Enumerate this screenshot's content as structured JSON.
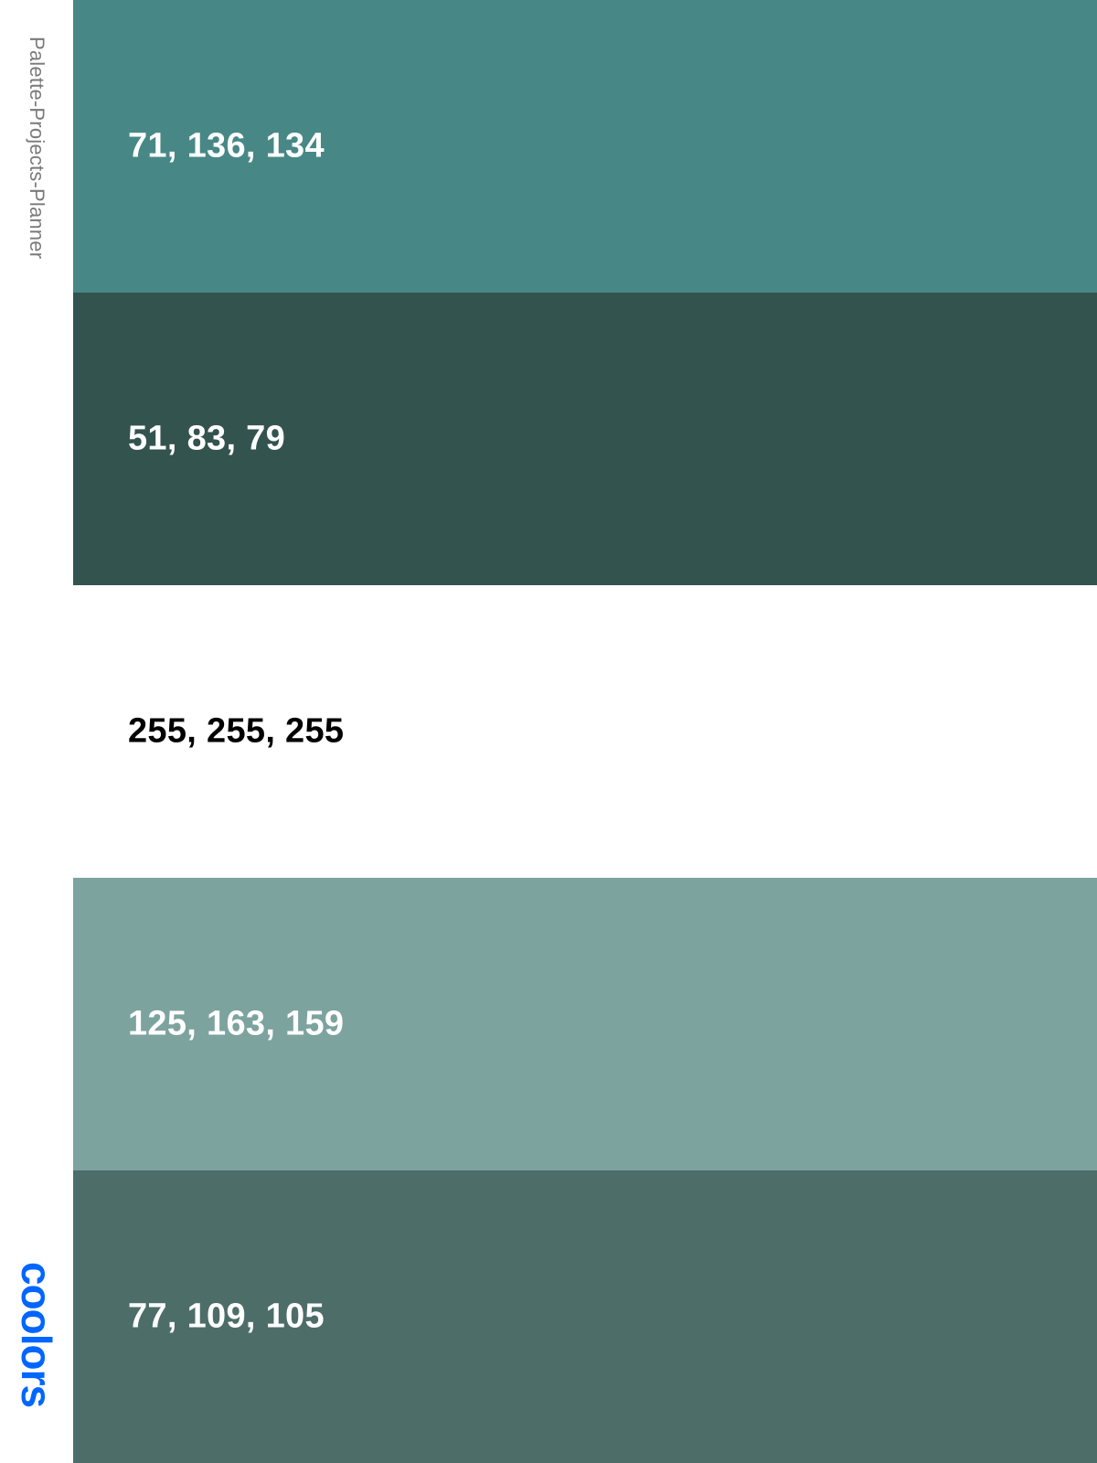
{
  "sidebar": {
    "title": "Palette-Projects-Planner",
    "logo_text": "coolors",
    "logo_color": "#0066ff"
  },
  "swatches": [
    {
      "label": "71, 136, 134",
      "color": "#478886",
      "text_color": "#ffffff"
    },
    {
      "label": "51, 83, 79",
      "color": "#33534f",
      "text_color": "#ffffff"
    },
    {
      "label": "255, 255, 255",
      "color": "#ffffff",
      "text_color": "#000000"
    },
    {
      "label": "125, 163, 159",
      "color": "#7da39f",
      "text_color": "#ffffff"
    },
    {
      "label": "77, 109, 105",
      "color": "#4d6d69",
      "text_color": "#ffffff"
    }
  ]
}
